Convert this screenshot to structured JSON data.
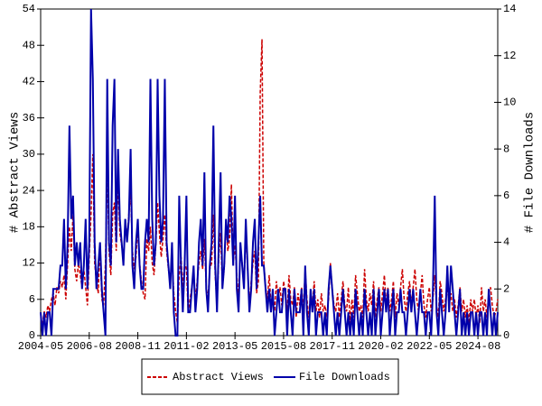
{
  "chart_data": {
    "type": "line",
    "ylabel": "# Abstract Views",
    "y2label": "# File Downloads",
    "legend": "bottom",
    "xlim": [
      "2004-05",
      "2025-07"
    ],
    "xticks": [
      "2004-05",
      "2006-08",
      "2008-11",
      "2011-02",
      "2013-05",
      "2015-08",
      "2017-11",
      "2020-02",
      "2022-05",
      "2024-08"
    ],
    "ylim": [
      0,
      54
    ],
    "yticks": [
      0,
      6,
      12,
      18,
      24,
      30,
      36,
      42,
      48,
      54
    ],
    "y2lim": [
      0,
      14
    ],
    "y2ticks": [
      0,
      2,
      4,
      6,
      8,
      10,
      12,
      14
    ],
    "x": [
      "2004-05",
      "2004-06",
      "2004-07",
      "2004-08",
      "2004-09",
      "2004-10",
      "2004-11",
      "2004-12",
      "2005-01",
      "2005-02",
      "2005-03",
      "2005-04",
      "2005-05",
      "2005-06",
      "2005-07",
      "2005-08",
      "2005-09",
      "2005-10",
      "2005-11",
      "2005-12",
      "2006-01",
      "2006-02",
      "2006-03",
      "2006-04",
      "2006-05",
      "2006-06",
      "2006-07",
      "2006-08",
      "2006-09",
      "2006-10",
      "2006-11",
      "2006-12",
      "2007-01",
      "2007-02",
      "2007-03",
      "2007-04",
      "2007-05",
      "2007-06",
      "2007-07",
      "2007-08",
      "2007-09",
      "2007-10",
      "2007-11",
      "2007-12",
      "2008-01",
      "2008-02",
      "2008-03",
      "2008-04",
      "2008-05",
      "2008-06",
      "2008-07",
      "2008-08",
      "2008-09",
      "2008-10",
      "2008-11",
      "2008-12",
      "2009-01",
      "2009-02",
      "2009-03",
      "2009-04",
      "2009-05",
      "2009-06",
      "2009-07",
      "2009-08",
      "2009-09",
      "2009-10",
      "2009-11",
      "2009-12",
      "2010-01",
      "2010-02",
      "2010-03",
      "2010-04",
      "2010-05",
      "2010-06",
      "2010-07",
      "2010-08",
      "2010-09",
      "2010-10",
      "2010-11",
      "2010-12",
      "2011-01",
      "2011-02",
      "2011-03",
      "2011-04",
      "2011-05",
      "2011-06",
      "2011-07",
      "2011-08",
      "2011-09",
      "2011-10",
      "2011-11",
      "2011-12",
      "2012-01",
      "2012-02",
      "2012-03",
      "2012-04",
      "2012-05",
      "2012-06",
      "2012-07",
      "2012-08",
      "2012-09",
      "2012-10",
      "2012-11",
      "2012-12",
      "2013-01",
      "2013-02",
      "2013-03",
      "2013-04",
      "2013-05",
      "2013-06",
      "2013-07",
      "2013-08",
      "2013-09",
      "2013-10",
      "2013-11",
      "2013-12",
      "2014-01",
      "2014-02",
      "2014-03",
      "2014-04",
      "2014-05",
      "2014-06",
      "2014-07",
      "2014-08",
      "2014-09",
      "2014-10",
      "2014-11",
      "2014-12",
      "2015-01",
      "2015-02",
      "2015-03",
      "2015-04",
      "2015-05",
      "2015-06",
      "2015-07",
      "2015-08",
      "2015-09",
      "2015-10",
      "2015-11",
      "2015-12",
      "2016-01",
      "2016-02",
      "2016-03",
      "2016-04",
      "2016-05",
      "2016-06",
      "2016-07",
      "2016-08",
      "2016-09",
      "2016-10",
      "2016-11",
      "2016-12",
      "2017-01",
      "2017-02",
      "2017-03",
      "2017-04",
      "2017-05",
      "2017-06",
      "2017-07",
      "2017-08",
      "2017-09",
      "2017-10",
      "2017-11",
      "2017-12",
      "2018-01",
      "2018-02",
      "2018-03",
      "2018-04",
      "2018-05",
      "2018-06",
      "2018-07",
      "2018-08",
      "2018-09",
      "2018-10",
      "2018-11",
      "2018-12",
      "2019-01",
      "2019-02",
      "2019-03",
      "2019-04",
      "2019-05",
      "2019-06",
      "2019-07",
      "2019-08",
      "2019-09",
      "2019-10",
      "2019-11",
      "2019-12",
      "2020-01",
      "2020-02",
      "2020-03",
      "2020-04",
      "2020-05",
      "2020-06",
      "2020-07",
      "2020-08",
      "2020-09",
      "2020-10",
      "2020-11",
      "2020-12",
      "2021-01",
      "2021-02",
      "2021-03",
      "2021-04",
      "2021-05",
      "2021-06",
      "2021-07",
      "2021-08",
      "2021-09",
      "2021-10",
      "2021-11",
      "2021-12",
      "2022-01",
      "2022-02",
      "2022-03",
      "2022-04",
      "2022-05",
      "2022-06",
      "2022-07",
      "2022-08",
      "2022-09",
      "2022-10",
      "2022-11",
      "2022-12",
      "2023-01",
      "2023-02",
      "2023-03",
      "2023-04",
      "2023-05",
      "2023-06",
      "2023-07",
      "2023-08",
      "2023-09",
      "2023-10",
      "2023-11",
      "2023-12",
      "2024-01",
      "2024-02",
      "2024-03",
      "2024-04",
      "2024-05",
      "2024-06",
      "2024-07",
      "2024-08",
      "2024-09",
      "2024-10",
      "2024-11",
      "2024-12",
      "2025-01",
      "2025-02",
      "2025-03",
      "2025-04",
      "2025-05",
      "2025-06",
      "2025-07"
    ],
    "series": [
      {
        "name": "Abstract Views",
        "color": "#cc0000",
        "line_style": "dashed",
        "axis": "y",
        "values": [
          3,
          2,
          4,
          3,
          5,
          4,
          6,
          7,
          5,
          8,
          7,
          9,
          8,
          10,
          6,
          12,
          18,
          14,
          20,
          11,
          9,
          12,
          10,
          8,
          11,
          8,
          5,
          13,
          20,
          30,
          12,
          9,
          7,
          15,
          6,
          5,
          12,
          28,
          14,
          10,
          20,
          22,
          14,
          26,
          17,
          15,
          12,
          19,
          16,
          20,
          24,
          14,
          11,
          13,
          18,
          12,
          9,
          7,
          6,
          16,
          14,
          18,
          12,
          10,
          15,
          22,
          17,
          13,
          16,
          20,
          14,
          11,
          9,
          13,
          7,
          4,
          2,
          10,
          13,
          8,
          12,
          11,
          4,
          6,
          8,
          10,
          6,
          9,
          12,
          14,
          11,
          16,
          8,
          6,
          11,
          12,
          20,
          10,
          5,
          13,
          17,
          8,
          11,
          19,
          14,
          16,
          25,
          12,
          15,
          10,
          6,
          14,
          12,
          8,
          17,
          11,
          5,
          9,
          12,
          14,
          7,
          9,
          40,
          49,
          12,
          8,
          6,
          10,
          5,
          7,
          4,
          9,
          6,
          8,
          5,
          9,
          7,
          4,
          10,
          6,
          5,
          8,
          3,
          7,
          5,
          8,
          4,
          11,
          6,
          3,
          7,
          5,
          9,
          4,
          6,
          3,
          7,
          4,
          5,
          3,
          6,
          12,
          8,
          5,
          4,
          7,
          3,
          6,
          9,
          5,
          4,
          8,
          2,
          6,
          3,
          10,
          7,
          4,
          5,
          3,
          11,
          6,
          4,
          7,
          5,
          9,
          3,
          6,
          8,
          4,
          7,
          10,
          5,
          8,
          4,
          6,
          9,
          3,
          7,
          5,
          8,
          11,
          6,
          4,
          7,
          9,
          5,
          8,
          11,
          6,
          4,
          7,
          10,
          5,
          3,
          6,
          8,
          4,
          6,
          10,
          5,
          3,
          9,
          7,
          4,
          6,
          8,
          5,
          7,
          4,
          6,
          3,
          5,
          8,
          4,
          6,
          3,
          5,
          2,
          6,
          4,
          6,
          3,
          5,
          2,
          8,
          4,
          6,
          3,
          7,
          8,
          5,
          3,
          4,
          6
        ]
      },
      {
        "name": "File Downloads",
        "color": "#0000aa",
        "line_style": "solid",
        "axis": "y2",
        "values": [
          1,
          0,
          1,
          0,
          1,
          1,
          0,
          2,
          2,
          2,
          2,
          3,
          3,
          5,
          2,
          4,
          9,
          5,
          6,
          3,
          4,
          3,
          4,
          2,
          3,
          5,
          2,
          4,
          14,
          11,
          4,
          2,
          3,
          4,
          2,
          1,
          0,
          11,
          4,
          3,
          9,
          11,
          4,
          8,
          5,
          4,
          3,
          5,
          4,
          5,
          8,
          3,
          2,
          4,
          5,
          3,
          2,
          2,
          4,
          5,
          4,
          11,
          5,
          3,
          4,
          11,
          6,
          4,
          5,
          11,
          4,
          3,
          2,
          4,
          1,
          0,
          0,
          6,
          3,
          1,
          3,
          6,
          1,
          1,
          2,
          3,
          1,
          2,
          4,
          5,
          3,
          7,
          2,
          1,
          3,
          4,
          9,
          3,
          1,
          4,
          7,
          2,
          3,
          5,
          4,
          6,
          5,
          3,
          6,
          2,
          1,
          4,
          3,
          2,
          5,
          3,
          1,
          2,
          4,
          5,
          2,
          4,
          6,
          3,
          3,
          2,
          1,
          2,
          1,
          2,
          0,
          1,
          2,
          1,
          1,
          2,
          2,
          0,
          2,
          1,
          0,
          2,
          1,
          1,
          1,
          2,
          0,
          3,
          1,
          0,
          2,
          1,
          2,
          0,
          1,
          1,
          1,
          0,
          1,
          0,
          2,
          3,
          2,
          1,
          0,
          1,
          0,
          1,
          2,
          1,
          0,
          1,
          0,
          1,
          0,
          2,
          1,
          0,
          1,
          0,
          2,
          1,
          0,
          1,
          0,
          2,
          0,
          1,
          2,
          0,
          1,
          2,
          1,
          2,
          0,
          1,
          2,
          0,
          1,
          1,
          2,
          1,
          1,
          0,
          1,
          2,
          1,
          2,
          1,
          0,
          1,
          2,
          1,
          1,
          0,
          1,
          1,
          0,
          2,
          6,
          1,
          0,
          2,
          1,
          0,
          1,
          3,
          1,
          3,
          2,
          1,
          0,
          1,
          2,
          0,
          1,
          0,
          1,
          0,
          1,
          1,
          0,
          1,
          0,
          1,
          1,
          0,
          1,
          0,
          2,
          1,
          0,
          1,
          0,
          1
        ]
      }
    ]
  }
}
